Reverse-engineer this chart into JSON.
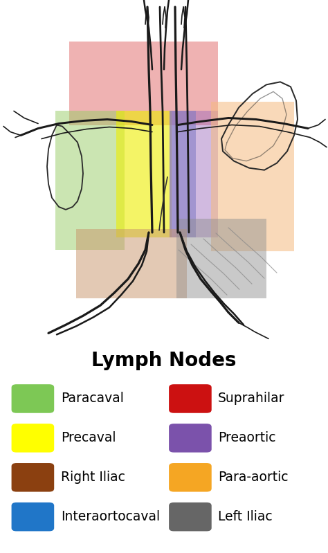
{
  "title": "Lymph Nodes",
  "title_fontsize": 20,
  "title_fontweight": "bold",
  "background_color": "#ffffff",
  "sketch_bg": "#f5f5f5",
  "legend_items_left": [
    {
      "label": "Paracaval",
      "color": "#7dc855"
    },
    {
      "label": "Precaval",
      "color": "#ffff00"
    },
    {
      "label": "Right Iliac",
      "color": "#8B4010"
    },
    {
      "label": "Interaortocaval",
      "color": "#2076c8"
    }
  ],
  "legend_items_right": [
    {
      "label": "Suprahilar",
      "color": "#cc1111"
    },
    {
      "label": "Preaortic",
      "color": "#7b52ab"
    },
    {
      "label": "Para-aortic",
      "color": "#f5a623"
    },
    {
      "label": "Left Iliac",
      "color": "#666666"
    }
  ],
  "regions": {
    "suprahilar": {
      "color": "#dd5555",
      "alpha": 0.45
    },
    "paracaval": {
      "color": "#99cc66",
      "alpha": 0.5
    },
    "precaval": {
      "color": "#eeee00",
      "alpha": 0.6
    },
    "interaortocaval": {
      "color": "#6688cc",
      "alpha": 0.55
    },
    "preaortic": {
      "color": "#9966bb",
      "alpha": 0.45
    },
    "paraaortic": {
      "color": "#f5bb80",
      "alpha": 0.55
    },
    "right_iliac": {
      "color": "#c8956a",
      "alpha": 0.5
    },
    "left_iliac": {
      "color": "#909090",
      "alpha": 0.48
    }
  }
}
